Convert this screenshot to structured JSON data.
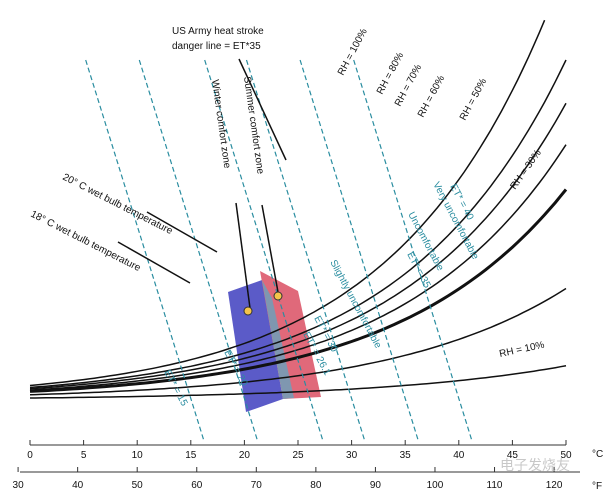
{
  "chart_data": {
    "type": "line",
    "x_celsius": {
      "ticks": [
        0,
        5,
        10,
        15,
        20,
        25,
        30,
        35,
        40,
        45,
        50
      ],
      "unit": "°C"
    },
    "x_fahrenheit": {
      "ticks": [
        30,
        40,
        50,
        60,
        70,
        80,
        90,
        100,
        110,
        120
      ],
      "unit": "°F"
    },
    "rh_curves": [
      {
        "label": "RH = 100%",
        "rh": 100,
        "heavy": false
      },
      {
        "label": "RH = 80%",
        "rh": 80,
        "heavy": false
      },
      {
        "label": "RH = 70%",
        "rh": 70,
        "heavy": false
      },
      {
        "label": "RH = 60%",
        "rh": 60,
        "heavy": false
      },
      {
        "label": "RH = 50%",
        "rh": 50,
        "heavy": true
      },
      {
        "label": "RH = 30%",
        "rh": 30,
        "heavy": false
      },
      {
        "label": "RH = 10%",
        "rh": 10,
        "heavy": false
      }
    ],
    "et_lines": [
      {
        "label": "ET* = 15",
        "et": 15
      },
      {
        "label": "ET* = 20",
        "et": 20
      },
      {
        "label": "ET* = 26.1",
        "et": 26.1
      },
      {
        "label": "ET* = 30",
        "et": 30
      },
      {
        "label": "ET* = 35",
        "et": 35
      },
      {
        "label": "ET* = 40",
        "et": 40
      }
    ],
    "zone_labels": {
      "slightly": "Slightly uncomfortable",
      "uncomfortable": "Uncomfortable",
      "very": "Very uncomfortable"
    },
    "comfort_zones": [
      {
        "name": "Winter comfort zone",
        "color": "#5b5bc8"
      },
      {
        "name": "Summer comfort zone",
        "color": "#e0697a"
      }
    ],
    "overlap_color": "#7f97b0",
    "annotations": {
      "heat_stroke": [
        "US Army heat stroke",
        "danger line = ET*35"
      ],
      "wb20": "20° C wet bulb temperature",
      "wb18": "18° C wet bulb temperature"
    },
    "points": [
      {
        "zone": "Winter comfort zone",
        "t_c": 21
      },
      {
        "zone": "Summer comfort zone",
        "t_c": 23.5
      }
    ],
    "watermark": "电子发烧友"
  }
}
